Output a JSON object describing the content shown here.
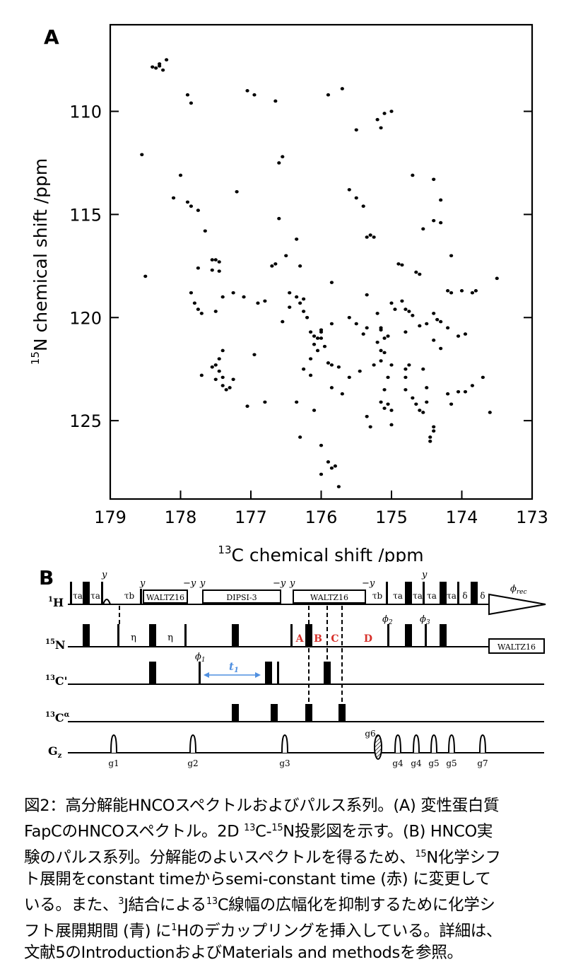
{
  "panel_a": {
    "label": "A",
    "chart_data": {
      "type": "scatter",
      "xlabel_sup": "13",
      "xlabel": "C chemical shift /ppm",
      "ylabel_sup": "15",
      "ylabel": "N chemical shift /ppm",
      "xlim": [
        179,
        173
      ],
      "ylim": [
        128.8,
        105.8
      ],
      "x_ticks": [
        179,
        178,
        177,
        176,
        175,
        174,
        173
      ],
      "y_ticks": [
        110,
        115,
        120,
        125
      ],
      "grid": false,
      "points": [
        [
          178.35,
          107.9
        ],
        [
          178.3,
          107.7
        ],
        [
          178.25,
          108.0
        ],
        [
          178.2,
          107.5
        ],
        [
          178.3,
          107.8
        ],
        [
          178.4,
          107.85
        ],
        [
          177.9,
          109.2
        ],
        [
          177.85,
          109.6
        ],
        [
          177.05,
          109.0
        ],
        [
          176.95,
          109.2
        ],
        [
          176.65,
          109.5
        ],
        [
          175.7,
          108.9
        ],
        [
          175.9,
          109.2
        ],
        [
          175.1,
          110.1
        ],
        [
          175.0,
          110.0
        ],
        [
          175.2,
          110.4
        ],
        [
          175.15,
          110.8
        ],
        [
          175.5,
          110.9
        ],
        [
          178.55,
          112.1
        ],
        [
          176.55,
          112.2
        ],
        [
          176.6,
          112.5
        ],
        [
          174.7,
          113.1
        ],
        [
          174.4,
          113.3
        ],
        [
          178.0,
          113.1
        ],
        [
          178.1,
          114.2
        ],
        [
          177.9,
          114.4
        ],
        [
          177.85,
          114.6
        ],
        [
          177.2,
          113.9
        ],
        [
          175.6,
          113.8
        ],
        [
          175.5,
          114.2
        ],
        [
          175.4,
          114.6
        ],
        [
          174.3,
          114.3
        ],
        [
          174.4,
          115.3
        ],
        [
          174.3,
          115.4
        ],
        [
          177.75,
          114.8
        ],
        [
          176.6,
          115.2
        ],
        [
          175.3,
          116.0
        ],
        [
          175.25,
          116.1
        ],
        [
          175.35,
          116.1
        ],
        [
          174.55,
          115.7
        ],
        [
          177.65,
          115.8
        ],
        [
          176.35,
          116.2
        ],
        [
          177.5,
          117.2
        ],
        [
          177.45,
          117.3
        ],
        [
          177.55,
          117.7
        ],
        [
          177.45,
          117.75
        ],
        [
          177.75,
          117.6
        ],
        [
          177.55,
          117.2
        ],
        [
          176.65,
          117.4
        ],
        [
          176.7,
          117.5
        ],
        [
          176.5,
          117.0
        ],
        [
          176.3,
          117.5
        ],
        [
          175.85,
          118.3
        ],
        [
          174.9,
          117.4
        ],
        [
          174.85,
          117.45
        ],
        [
          174.65,
          117.8
        ],
        [
          174.6,
          117.9
        ],
        [
          174.15,
          117.0
        ],
        [
          174.2,
          118.7
        ],
        [
          174.15,
          118.8
        ],
        [
          174.0,
          118.7
        ],
        [
          173.85,
          118.8
        ],
        [
          173.8,
          118.7
        ],
        [
          173.5,
          118.1
        ],
        [
          178.5,
          118.0
        ],
        [
          177.85,
          118.8
        ],
        [
          177.8,
          119.3
        ],
        [
          177.75,
          119.6
        ],
        [
          177.7,
          119.8
        ],
        [
          177.5,
          119.7
        ],
        [
          177.4,
          119.0
        ],
        [
          177.25,
          118.8
        ],
        [
          177.1,
          119.0
        ],
        [
          176.9,
          119.3
        ],
        [
          176.8,
          119.2
        ],
        [
          176.45,
          118.8
        ],
        [
          176.35,
          119.0
        ],
        [
          176.3,
          119.3
        ],
        [
          176.25,
          119.1
        ],
        [
          176.25,
          119.7
        ],
        [
          176.2,
          120.0
        ],
        [
          176.45,
          119.5
        ],
        [
          176.55,
          120.2
        ],
        [
          175.35,
          118.9
        ],
        [
          175.2,
          119.8
        ],
        [
          175.0,
          119.3
        ],
        [
          174.95,
          119.6
        ],
        [
          174.85,
          119.2
        ],
        [
          174.8,
          119.6
        ],
        [
          174.7,
          119.9
        ],
        [
          174.75,
          119.7
        ],
        [
          174.6,
          120.4
        ],
        [
          174.4,
          119.8
        ],
        [
          174.35,
          120.1
        ],
        [
          174.3,
          120.2
        ],
        [
          173.95,
          120.8
        ],
        [
          174.05,
          120.9
        ],
        [
          174.5,
          120.3
        ],
        [
          174.8,
          120.7
        ],
        [
          175.05,
          120.9
        ],
        [
          175.1,
          121.0
        ],
        [
          175.15,
          120.5
        ],
        [
          175.15,
          120.6
        ],
        [
          175.2,
          121.2
        ],
        [
          175.15,
          121.6
        ],
        [
          175.1,
          121.7
        ],
        [
          175.35,
          120.5
        ],
        [
          175.4,
          120.8
        ],
        [
          175.5,
          120.3
        ],
        [
          175.6,
          120.0
        ],
        [
          175.85,
          120.3
        ],
        [
          176.0,
          120.6
        ],
        [
          176.05,
          121.0
        ],
        [
          176.1,
          121.3
        ],
        [
          176.15,
          120.7
        ],
        [
          176.1,
          120.9
        ],
        [
          176.0,
          120.7
        ],
        [
          176.0,
          121.0
        ],
        [
          175.95,
          121.4
        ],
        [
          176.05,
          121.6
        ],
        [
          175.9,
          122.2
        ],
        [
          175.85,
          122.3
        ],
        [
          175.75,
          122.4
        ],
        [
          176.15,
          122.0
        ],
        [
          176.25,
          122.5
        ],
        [
          177.4,
          121.6
        ],
        [
          177.45,
          122.0
        ],
        [
          177.5,
          122.3
        ],
        [
          177.55,
          122.4
        ],
        [
          177.45,
          122.6
        ],
        [
          177.4,
          122.9
        ],
        [
          177.5,
          123.0
        ],
        [
          177.4,
          123.3
        ],
        [
          177.35,
          123.5
        ],
        [
          177.3,
          123.4
        ],
        [
          177.25,
          123.0
        ],
        [
          177.7,
          122.8
        ],
        [
          176.95,
          121.8
        ],
        [
          177.05,
          124.3
        ],
        [
          176.8,
          124.1
        ],
        [
          176.35,
          124.1
        ],
        [
          176.1,
          124.5
        ],
        [
          176.3,
          125.8
        ],
        [
          176.0,
          126.2
        ],
        [
          175.7,
          123.7
        ],
        [
          175.6,
          122.9
        ],
        [
          175.85,
          123.4
        ],
        [
          175.45,
          122.6
        ],
        [
          175.25,
          122.3
        ],
        [
          175.35,
          124.8
        ],
        [
          175.3,
          125.3
        ],
        [
          175.15,
          124.1
        ],
        [
          175.1,
          124.4
        ],
        [
          175.05,
          124.2
        ],
        [
          175.0,
          124.5
        ],
        [
          175.1,
          123.5
        ],
        [
          175.05,
          122.9
        ],
        [
          175.0,
          122.3
        ],
        [
          175.15,
          122.1
        ],
        [
          175.0,
          125.2
        ],
        [
          174.8,
          122.5
        ],
        [
          174.75,
          122.3
        ],
        [
          174.8,
          122.9
        ],
        [
          174.8,
          123.5
        ],
        [
          174.7,
          123.9
        ],
        [
          174.65,
          124.2
        ],
        [
          174.6,
          124.5
        ],
        [
          174.55,
          122.5
        ],
        [
          174.5,
          123.4
        ],
        [
          174.5,
          124.1
        ],
        [
          174.55,
          124.6
        ],
        [
          174.4,
          125.3
        ],
        [
          174.4,
          125.5
        ],
        [
          174.45,
          125.8
        ],
        [
          174.45,
          126.0
        ],
        [
          174.2,
          123.7
        ],
        [
          174.15,
          124.2
        ],
        [
          174.05,
          123.6
        ],
        [
          173.95,
          123.6
        ],
        [
          173.85,
          123.3
        ],
        [
          173.7,
          122.9
        ],
        [
          173.6,
          124.6
        ],
        [
          174.4,
          121.1
        ],
        [
          174.3,
          121.5
        ],
        [
          174.2,
          120.5
        ],
        [
          176.15,
          122.8
        ],
        [
          176.0,
          127.6
        ],
        [
          175.9,
          127.0
        ],
        [
          175.85,
          127.3
        ],
        [
          175.8,
          127.2
        ],
        [
          175.75,
          128.2
        ]
      ]
    }
  },
  "panel_b": {
    "label": "B",
    "channels": {
      "h": {
        "sup": "1",
        "name": "H"
      },
      "n": {
        "sup": "15",
        "name": "N"
      },
      "cp": {
        "sup": "13",
        "name": "C'"
      },
      "ca": {
        "sup": "13",
        "name": "C",
        "sub": "α"
      },
      "gz": {
        "name": "G",
        "sub": "z"
      }
    },
    "boxes": {
      "waltz1": "WALTZ16",
      "dipsi": "DIPSI-3",
      "waltz2": "WALTZ16",
      "waltz3": "WALTZ16"
    },
    "phases": {
      "y": "y",
      "my": "−y",
      "phi1": "ϕ",
      "phi1_sub": "1",
      "phi2": "ϕ",
      "phi2_sub": "2",
      "phi3": "ϕ",
      "phi3_sub": "3",
      "rec": "ϕ",
      "rec_sub": "rec"
    },
    "delays": {
      "tau_a": "τa",
      "tau_b": "τb",
      "eta": "η",
      "delta": "δ"
    },
    "t1": {
      "t": "t",
      "sub": "1"
    },
    "red_labels": [
      "A",
      "B",
      "C",
      "D"
    ],
    "gradients": [
      "g1",
      "g2",
      "g3",
      "g4",
      "g4",
      "g5",
      "g5",
      "g6",
      "g7"
    ],
    "colors": {
      "red": "#d7312b",
      "blue": "#4f8fe0"
    }
  },
  "caption": {
    "line1": "図2：高分解能HNCOスペクトルおよびパルス系列。(A) 変性蛋白質",
    "line2a": "FapCのHNCOスペクトル。2D ",
    "line2_sup1": "13",
    "line2b": "C-",
    "line2_sup2": "15",
    "line2c": "N投影図を示す。(B) HNCO実",
    "line3a": "験のパルス系列。分解能のよいスペクトルを得るため、",
    "line3_sup": "15",
    "line3b": "N化学シフ",
    "line4": "ト展開をconstant timeからsemi-constant time (赤) に変更して",
    "line5a": "いる。また、",
    "line5_sup1": "3",
    "line5b": "J結合による",
    "line5_sup2": "13",
    "line5c": "C線幅の広幅化を抑制するために化学シ",
    "line6a": "フト展開期間 (青) に",
    "line6_sup": "1",
    "line6b": "Hのデカップリングを挿入している。詳細は、",
    "line7": "文献5のIntroductionおよびMaterials and methodsを参照。"
  }
}
